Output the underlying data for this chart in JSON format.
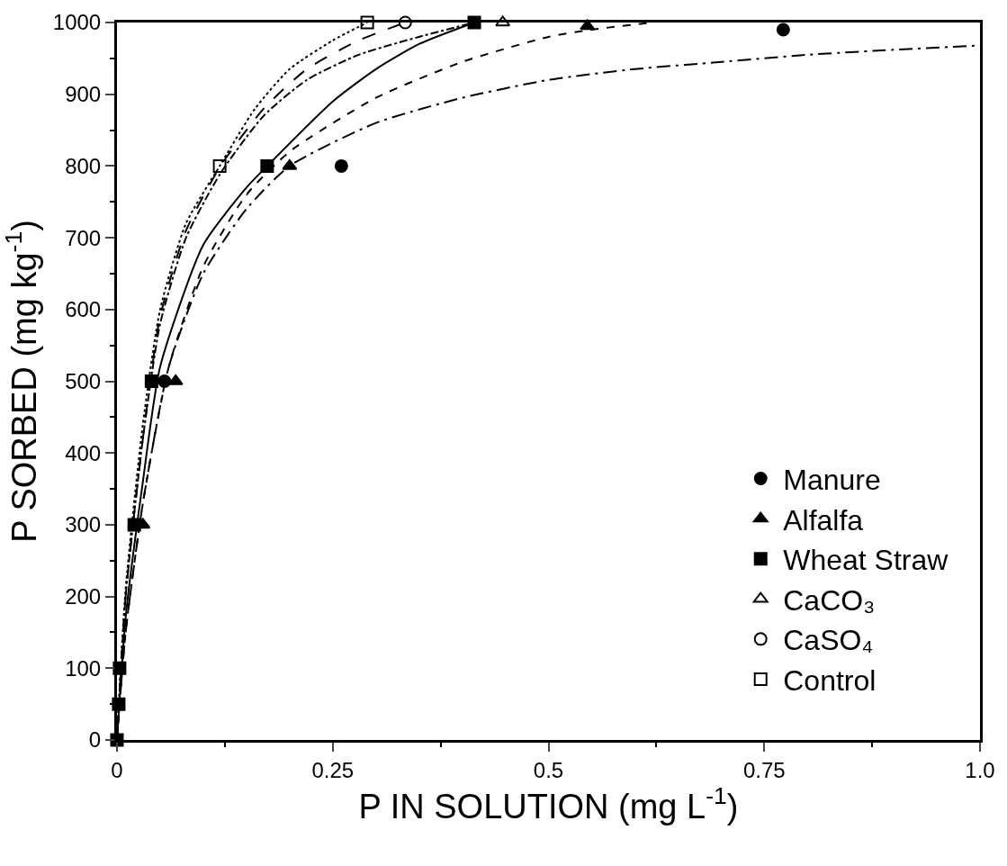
{
  "chart_data": {
    "type": "scatter",
    "xlabel": "P IN SOLUTION (mg L$^{-1}$)",
    "ylabel": "P SORBED (mg kg$^{-1}$)",
    "xlim": [
      0,
      1.0
    ],
    "xticks": [
      0,
      0.25,
      0.5,
      0.75,
      {
        "value": 1.0,
        "label": "1.0"
      }
    ],
    "ylim": [
      0,
      1000
    ],
    "yticks": [
      0,
      100,
      200,
      300,
      400,
      500,
      600,
      700,
      800,
      900,
      1000
    ],
    "legend": "bottom right",
    "series": [
      {
        "name": "Manure",
        "marker": "circle",
        "color": "#000000",
        "x": [
          0.055,
          0.26,
          0.772
        ],
        "values": [
          500,
          800,
          990
        ]
      },
      {
        "type": "line",
        "line_style": "longdashdot",
        "color": "#000000",
        "x": [
          0,
          0.01,
          0.03,
          0.06,
          0.1,
          0.15,
          0.2,
          0.3,
          0.4,
          0.5,
          0.6,
          0.7,
          0.8,
          0.9,
          1.0
        ],
        "values": [
          0,
          150,
          330,
          520,
          650,
          740,
          800,
          860,
          895,
          920,
          935,
          945,
          955,
          962,
          968
        ]
      },
      {
        "name": "Alfalfa",
        "marker": "triangle",
        "color": "#000000",
        "x": [
          0.03,
          0.068,
          0.2,
          0.545
        ],
        "values": [
          300,
          500,
          800,
          995
        ]
      },
      {
        "type": "line",
        "line_style": "dashed",
        "color": "#000000",
        "x": [
          0,
          0.01,
          0.03,
          0.06,
          0.1,
          0.15,
          0.2,
          0.3,
          0.4,
          0.5,
          0.55,
          0.62
        ],
        "values": [
          0,
          150,
          330,
          520,
          660,
          760,
          820,
          895,
          945,
          980,
          990,
          1000
        ]
      },
      {
        "name": "Wheat Straw",
        "marker": "square",
        "color": "#000000",
        "x": [
          0,
          0.002,
          0.003,
          0.02,
          0.04,
          0.174,
          0.414
        ],
        "values": [
          0,
          50,
          100,
          300,
          500,
          800,
          1000
        ]
      },
      {
        "type": "line",
        "line_style": "solid",
        "color": "#000000",
        "x": [
          0,
          0.01,
          0.03,
          0.05,
          0.1,
          0.15,
          0.174,
          0.25,
          0.3,
          0.35,
          0.414
        ],
        "values": [
          0,
          170,
          360,
          520,
          690,
          770,
          800,
          890,
          935,
          970,
          1000
        ]
      },
      {
        "name": "CaCO₃",
        "marker": "triangle-open",
        "color": "#000000",
        "x": [
          0.447
        ],
        "values": [
          1000
        ]
      },
      {
        "type": "line",
        "line_style": "dashdot",
        "color": "#000000",
        "x": [
          0,
          0.01,
          0.03,
          0.05,
          0.08,
          0.12,
          0.17,
          0.22,
          0.28,
          0.35,
          0.414
        ],
        "values": [
          0,
          200,
          420,
          580,
          700,
          790,
          870,
          920,
          955,
          980,
          1000
        ]
      },
      {
        "name": "CaSO₄",
        "marker": "circle-open",
        "color": "#000000",
        "x": [
          0.334
        ],
        "values": [
          1000
        ]
      },
      {
        "type": "line",
        "line_style": "longdash",
        "color": "#000000",
        "x": [
          0,
          0.01,
          0.03,
          0.05,
          0.08,
          0.12,
          0.17,
          0.22,
          0.28,
          0.334
        ],
        "values": [
          0,
          200,
          420,
          590,
          710,
          800,
          880,
          935,
          975,
          1000
        ]
      },
      {
        "name": "Control",
        "marker": "square-open",
        "color": "#000000",
        "x": [
          0.119,
          0.29
        ],
        "values": [
          800,
          1000
        ]
      },
      {
        "type": "line",
        "line_style": "dotted",
        "color": "#000000",
        "x": [
          0,
          0.01,
          0.03,
          0.05,
          0.08,
          0.119,
          0.16,
          0.2,
          0.25,
          0.29
        ],
        "values": [
          0,
          210,
          440,
          600,
          720,
          800,
          880,
          935,
          975,
          1000
        ]
      }
    ]
  }
}
